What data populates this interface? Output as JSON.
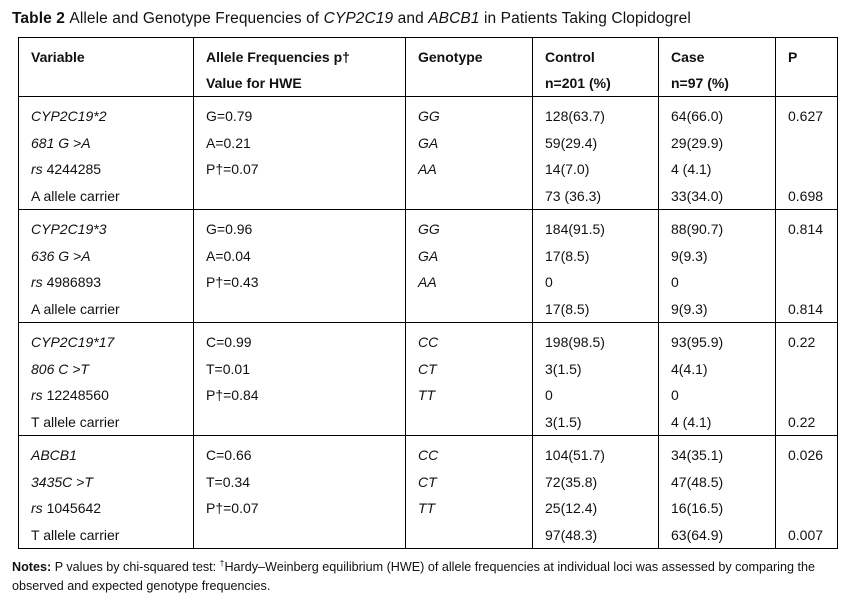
{
  "title": {
    "parts": [
      {
        "t": "Table 2 ",
        "b": true
      },
      {
        "t": "Allele and Genotype Frequencies of "
      },
      {
        "t": "CYP2C19",
        "i": true
      },
      {
        "t": " and "
      },
      {
        "t": "ABCB1",
        "i": true
      },
      {
        "t": " in Patients Taking Clopidogrel"
      }
    ]
  },
  "table": {
    "columns": [
      {
        "lines": [
          "Variable"
        ]
      },
      {
        "lines": [
          "Allele Frequencies p†",
          "Value for HWE"
        ]
      },
      {
        "lines": [
          "Genotype"
        ]
      },
      {
        "lines": [
          "Control",
          "n=201 (%)"
        ]
      },
      {
        "lines": [
          "Case",
          "n=97 (%)"
        ]
      },
      {
        "lines": [
          "P"
        ]
      }
    ],
    "rows": [
      {
        "variable": [
          [
            {
              "t": "CYP2C19*2",
              "i": true
            }
          ],
          [
            {
              "t": "681 G >A",
              "i": true
            }
          ],
          [
            {
              "t": "rs ",
              "i": true
            },
            {
              "t": "4244285"
            }
          ],
          [
            {
              "t": "A allele carrier"
            }
          ]
        ],
        "allele": [
          "G=0.79",
          "A=0.21",
          "P†=0.07"
        ],
        "genotype": [
          "GG",
          "GA",
          "AA"
        ],
        "control": [
          "128(63.7)",
          "59(29.4)",
          "14(7.0)",
          "73 (36.3)"
        ],
        "case": [
          "64(66.0)",
          "29(29.9)",
          "4 (4.1)",
          "33(34.0)"
        ],
        "p": [
          "0.627",
          "",
          "",
          "0.698"
        ]
      },
      {
        "variable": [
          [
            {
              "t": "CYP2C19*3",
              "i": true
            }
          ],
          [
            {
              "t": "636 G >A",
              "i": true
            }
          ],
          [
            {
              "t": "rs ",
              "i": true
            },
            {
              "t": "4986893"
            }
          ],
          [
            {
              "t": "A allele carrier"
            }
          ]
        ],
        "allele": [
          "G=0.96",
          "A=0.04",
          "P†=0.43"
        ],
        "genotype": [
          "GG",
          "GA",
          "AA"
        ],
        "control": [
          "184(91.5)",
          "17(8.5)",
          "0",
          "17(8.5)"
        ],
        "case": [
          "88(90.7)",
          "9(9.3)",
          "0",
          "9(9.3)"
        ],
        "p": [
          "0.814",
          "",
          "",
          "0.814"
        ]
      },
      {
        "variable": [
          [
            {
              "t": "CYP2C19*17",
              "i": true
            }
          ],
          [
            {
              "t": "806 C >T",
              "i": true
            }
          ],
          [
            {
              "t": "rs ",
              "i": true
            },
            {
              "t": "12248560"
            }
          ],
          [
            {
              "t": "T allele carrier"
            }
          ]
        ],
        "allele": [
          "C=0.99",
          "T=0.01",
          "P†=0.84"
        ],
        "genotype": [
          "CC",
          "CT",
          "TT"
        ],
        "control": [
          "198(98.5)",
          "3(1.5)",
          "0",
          "3(1.5)"
        ],
        "case": [
          "93(95.9)",
          "4(4.1)",
          "0",
          "4 (4.1)"
        ],
        "p": [
          "0.22",
          "",
          "",
          "0.22"
        ]
      },
      {
        "variable": [
          [
            {
              "t": "ABCB1",
              "i": true
            }
          ],
          [
            {
              "t": "3435C >T",
              "i": true
            }
          ],
          [
            {
              "t": "rs ",
              "i": true
            },
            {
              "t": "1045642"
            }
          ],
          [
            {
              "t": "T allele carrier"
            }
          ]
        ],
        "allele": [
          "C=0.66",
          "T=0.34",
          "P†=0.07"
        ],
        "genotype": [
          "CC",
          "CT",
          "TT"
        ],
        "control": [
          "104(51.7)",
          "72(35.8)",
          "25(12.4)",
          "97(48.3)"
        ],
        "case": [
          "34(35.1)",
          "47(48.5)",
          "16(16.5)",
          "63(64.9)"
        ],
        "p": [
          "0.026",
          "",
          "",
          "0.007"
        ]
      }
    ]
  },
  "notes": {
    "parts": [
      {
        "t": "Notes: ",
        "b": true
      },
      {
        "t": "P values by chi-squared test: "
      },
      {
        "t": "†",
        "sup": true
      },
      {
        "t": "Hardy–Weinberg equilibrium (HWE) of allele frequencies at individual loci was assessed by comparing the observed and expected genotype frequencies."
      }
    ]
  }
}
